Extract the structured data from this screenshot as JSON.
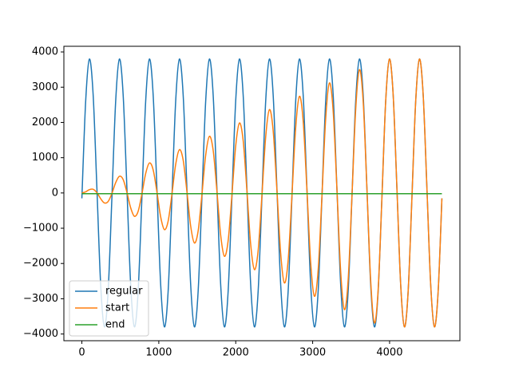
{
  "chart_data": {
    "type": "line",
    "x": [
      0,
      48.75,
      97.5,
      146.25,
      195,
      243.75,
      292.5,
      341.25,
      390,
      438.75,
      487.5,
      536.25,
      585,
      633.75,
      682.5,
      731.25,
      780,
      828.75,
      877.5,
      926.25,
      975,
      1023.75,
      1072.5,
      1121.25,
      1170,
      1218.75,
      1267.5,
      1316.25,
      1365,
      1413.75,
      1462.5,
      1511.25,
      1560,
      1608.75,
      1657.5,
      1706.25,
      1755,
      1803.75,
      1852.5,
      1901.25,
      1950,
      1998.75,
      2047.5,
      2096.25,
      2145,
      2193.75,
      2242.5,
      2291.25,
      2340,
      2388.75,
      2437.5,
      2486.25,
      2535,
      2583.75,
      2632.5,
      2681.25,
      2730,
      2778.75,
      2827.5,
      2876.25,
      2925,
      2973.75,
      3022.5,
      3071.25,
      3120,
      3168.75,
      3217.5,
      3266.25,
      3315,
      3363.75,
      3412.5,
      3461.25,
      3510,
      3558.75,
      3607.5,
      3656.25,
      3705,
      3753.75,
      3802.5,
      3851.25,
      3900,
      3948.75,
      3997.5,
      4046.25,
      4095,
      4143.75,
      4192.5,
      4241.25,
      4290,
      4338.75,
      4387.5,
      4436.25,
      4485,
      4533.75,
      4582.5,
      4631.25,
      4680
    ],
    "series": [
      {
        "name": "regular",
        "color": "#1f77b4",
        "values": [
          -152,
          2578,
          3797,
          2793,
          152,
          -2578,
          -3797,
          -2793,
          -152,
          2578,
          3797,
          2793,
          152,
          -2578,
          -3797,
          -2793,
          -152,
          2578,
          3797,
          2793,
          152,
          -2578,
          -3797,
          -2793,
          -152,
          2578,
          3797,
          2793,
          152,
          -2578,
          -3797,
          -2793,
          -152,
          2578,
          3797,
          2793,
          152,
          -2578,
          -3797,
          -2793,
          -152,
          2578,
          3797,
          2793,
          152,
          -2578,
          -3797,
          -2793,
          -152,
          2578,
          3797,
          2793,
          152,
          -2578,
          -3797,
          -2793,
          -152,
          2578,
          3797,
          2793,
          152,
          -2578,
          -3797,
          -2793,
          -152,
          2578,
          3797,
          2793,
          152,
          -2578,
          -3797,
          -2793,
          -152,
          2578,
          3797,
          2793,
          152,
          -2578,
          -3797,
          -2793,
          -152,
          2578,
          3797,
          2793,
          152,
          -2578,
          -3797,
          -2793,
          -152,
          2578,
          3797,
          2793,
          152,
          -2578,
          -3797,
          -2793,
          -152
        ]
      },
      {
        "name": "start",
        "color": "#ff7f0e",
        "values": [
          0,
          32,
          94,
          104,
          8,
          -160,
          -283,
          -243,
          -15,
          289,
          472,
          382,
          23,
          -417,
          -661,
          -521,
          -30,
          545,
          850,
          660,
          38,
          -673,
          -1039,
          -799,
          -45,
          802,
          1228,
          938,
          53,
          -930,
          -1417,
          -1078,
          -61,
          1058,
          1606,
          1217,
          68,
          -1186,
          -1795,
          -1356,
          -76,
          1315,
          1984,
          1495,
          83,
          -1443,
          -2173,
          -1634,
          -91,
          1571,
          2362,
          1773,
          98,
          -1699,
          -2551,
          -1912,
          -106,
          1828,
          2740,
          2051,
          113,
          -1956,
          -2929,
          -2190,
          -121,
          2084,
          3118,
          2329,
          129,
          -2212,
          -3307,
          -2468,
          -136,
          2341,
          3496,
          2607,
          144,
          -2469,
          -3685,
          -2746,
          -151,
          2576,
          3796,
          2793,
          152,
          -2576,
          -3796,
          -2793,
          -152,
          2576,
          3796,
          2793,
          152,
          -2576,
          -3796,
          -2793,
          -152
        ]
      },
      {
        "name": "end",
        "color": "#2ca02c",
        "values": [
          -20,
          -20,
          -20,
          -20,
          -20,
          -20,
          -20,
          -20,
          -20,
          -20,
          -20,
          -20,
          -20,
          -20,
          -20,
          -20,
          -20,
          -20,
          -20,
          -20,
          -20,
          -20,
          -20,
          -20,
          -20,
          -20,
          -20,
          -20,
          -20,
          -20,
          -20,
          -20,
          -20,
          -20,
          -20,
          -20,
          -20,
          -20,
          -20,
          -20,
          -20,
          -20,
          -20,
          -20,
          -20,
          -20,
          -20,
          -20,
          -20,
          -20,
          -20,
          -20,
          -20,
          -20,
          -20,
          -20,
          -20,
          -20,
          -20,
          -20,
          -20,
          -20,
          -20,
          -20,
          -20,
          -20,
          -20,
          -20,
          -20,
          -20,
          -20,
          -20,
          -20,
          -20,
          -20,
          -20,
          -20,
          -20,
          -20,
          -20,
          -20,
          -20,
          -20,
          -20,
          -20,
          -20,
          -20,
          -20,
          -20,
          -20,
          -20,
          -20,
          -20,
          -20,
          -20,
          -20,
          -20
        ]
      }
    ],
    "xlim": [
      -234,
      4914
    ],
    "ylim": [
      -4190,
      4160
    ],
    "xticks": [
      0,
      1000,
      2000,
      3000,
      4000
    ],
    "yticks": [
      {
        "value": -4000,
        "label": "−4000"
      },
      {
        "value": -3000,
        "label": "−3000"
      },
      {
        "value": -2000,
        "label": "−2000"
      },
      {
        "value": -1000,
        "label": "−1000"
      },
      0,
      1000,
      2000,
      3000,
      4000
    ],
    "grid": false,
    "legend": "lower left"
  }
}
